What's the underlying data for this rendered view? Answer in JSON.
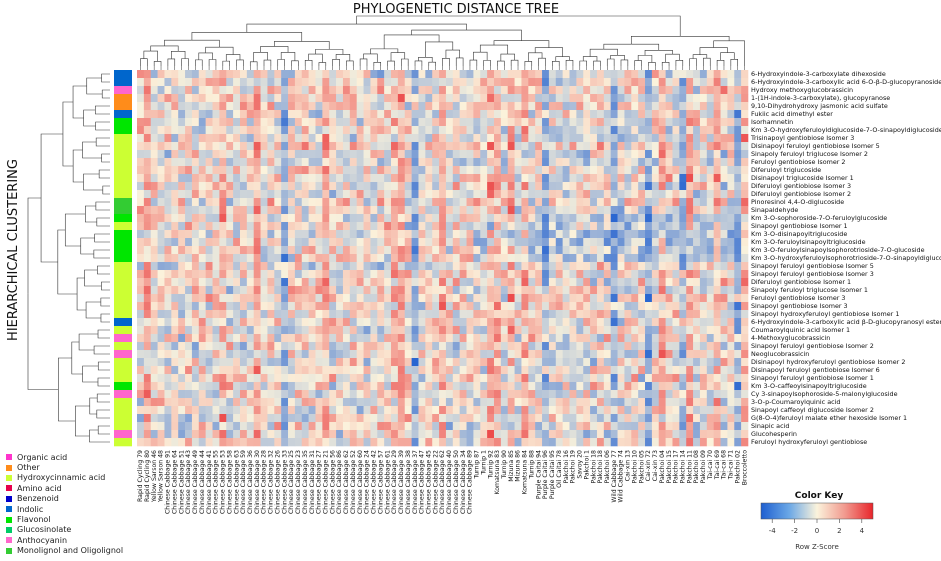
{
  "title": "PHYLOGENETIC DISTANCE TREE",
  "ylabel_side": "HIERARCHICAL CLUSTERING",
  "legend_items": [
    {
      "label": "Organic acid",
      "color": "#ff33cc"
    },
    {
      "label": "Other",
      "color": "#ff8c1a"
    },
    {
      "label": "Hydroxycinnamic acid",
      "color": "#ccff33"
    },
    {
      "label": "Amino acid",
      "color": "#e6004c"
    },
    {
      "label": "Benzenoid",
      "color": "#0000cc"
    },
    {
      "label": "Indolic",
      "color": "#0066cc"
    },
    {
      "label": "Flavonol",
      "color": "#00e600"
    },
    {
      "label": "Glucosinolate",
      "color": "#00cc66"
    },
    {
      "label": "Anthocyanin",
      "color": "#ff66cc"
    },
    {
      "label": "Monolignol and Oligolignol",
      "color": "#33cc33"
    }
  ],
  "color_key": {
    "title": "Color Key",
    "xlabel": "Row Z-Score",
    "ticks": [
      "-4",
      "-2",
      "0",
      "2",
      "4"
    ],
    "range": [
      -5,
      5
    ],
    "low_color": "#1f77d0",
    "mid_color": "#fbf3dc",
    "high_color": "#e8252b"
  },
  "chart_data": {
    "type": "heatmap",
    "title": "PHYLOGENETIC DISTANCE TREE",
    "ylabel": "HIERARCHICAL CLUSTERING",
    "legend_placement": "bottom-left",
    "rows": [
      "6-Hydroxyindole-3-carboxylate dihexoside",
      "6-Hydroxyindole-3-carboxylic acid 6-O-β-D-glucopyranoside",
      "Hydroxy methoxyglucobrassicin",
      "1-(1H-indole-3-carboxylate), glucopyranose",
      "9,10-Dihydrohydroxy jasmonic acid sulfate",
      "Fukiic acid dimethyl ester",
      "Isorhamnetin",
      "Km 3-O-hydroxyferuloyldiglucoside-7-O-sinapoyldiglucoside",
      "Trisinapoyl gentiobiose Isomer 3",
      "Disinapoyl feruloyl gentiobiose Isomer 5",
      "Sinapoly feruloyl triglucose Isomer 2",
      "Feruloyl gentiobiose Isomer 2",
      "Diferuloyl triglucoside",
      "Disinapoyl triglucoside Isomer 1",
      "Diferuloyl gentiobiose Isomer 3",
      "Diferuloyl gentiobiose Isomer 2",
      "Pinoresinol 4,4-O-diglucoside",
      "Sinapaldehyde",
      "Km 3-O-sophoroside-7-O-feruloylglucoside",
      "Sinapoyl gentiobiose Isomer 1",
      "Km 3-O-disinapoyltriglucoside",
      "Km 3-O-feruloylsinapoyltriglucoside",
      "Km 3-O-feruloylsinapoylsophorotrioside-7-O-glucoside",
      "Km 3-O-hydroxyferuloylsophorotrioside-7-O-sinapoyldiglucoside",
      "Sinapoyl feruloyl gentiobiose Isomer 5",
      "Sinapoyl feruloyl gentiobiose Isomer 3",
      "Diferuloyl gentiobiose Isomer 1",
      "Sinapoly feruloyl triglucose Isomer 1",
      "Feruloyl gentiobiose Isomer 3",
      "Sinapoyl gentiobiose Isomer 3",
      "Sinapoyl hydroxyferuloyl gentiobiose Isomer 1",
      "6-Hydroxyindole-3-carboxylic acid β-D-glucopyranosyl ester",
      "Coumaroylquinic acid Isomer 1",
      "4-Methoxyglucobrassicin",
      "Sinapoyl feruloyl gentiobiose Isomer 2",
      "Neoglucobrassicin",
      "Disinapoyl hydroxyferuloyl gentiobiose Isomer 2",
      "Disinapoyl feruloyl gentiobiose Isomer 6",
      "Sinapoyl feruloyl gentiobiose Isomer 1",
      "Km 3-O-caffeoylsinapoyltriglucoside",
      "Cy 3-sinapoylsophoroside-5-malonylglucoside",
      "3-O-p-Coumaroylquinic acid",
      "Sinapoyl caffeoyl diglucoside Isomer 2",
      "G(8-O-4)feruloyl malate ether hexoside Isomer 1",
      "Sinapic acid",
      "Glucohesperin",
      "Feruloyl hydroxyferuloyl gentiobiose"
    ],
    "row_classes": [
      "Indolic",
      "Indolic",
      "Anthocyanin",
      "Other",
      "Other",
      "Indolic",
      "Flavonol",
      "Flavonol",
      "Hydroxycinnamic acid",
      "Hydroxycinnamic acid",
      "Hydroxycinnamic acid",
      "Hydroxycinnamic acid",
      "Hydroxycinnamic acid",
      "Hydroxycinnamic acid",
      "Hydroxycinnamic acid",
      "Hydroxycinnamic acid",
      "Monolignol and Oligolignol",
      "Monolignol and Oligolignol",
      "Flavonol",
      "Hydroxycinnamic acid",
      "Flavonol",
      "Flavonol",
      "Flavonol",
      "Flavonol",
      "Hydroxycinnamic acid",
      "Hydroxycinnamic acid",
      "Hydroxycinnamic acid",
      "Hydroxycinnamic acid",
      "Hydroxycinnamic acid",
      "Hydroxycinnamic acid",
      "Hydroxycinnamic acid",
      "Indolic",
      "Hydroxycinnamic acid",
      "Anthocyanin",
      "Hydroxycinnamic acid",
      "Anthocyanin",
      "Hydroxycinnamic acid",
      "Hydroxycinnamic acid",
      "Hydroxycinnamic acid",
      "Flavonol",
      "Anthocyanin",
      "Hydroxycinnamic acid",
      "Hydroxycinnamic acid",
      "Hydroxycinnamic acid",
      "Hydroxycinnamic acid",
      "Anthocyanin",
      "Hydroxycinnamic acid"
    ],
    "columns": [
      "Rapid Cycling 79",
      "Rapid Cycling 80",
      "Yellow Sarson 46",
      "Yellow Sarson 48",
      "Chinese Cabbage 91",
      "Chinese Cabbage 64",
      "Chinese Cabbage 51",
      "Chinese Cabbage 43",
      "Chinese Cabbage 49",
      "Chinese Cabbage 44",
      "Chinese Cabbage 41",
      "Chinese Cabbage 55",
      "Chinese Cabbage 53",
      "Chinese Cabbage 58",
      "Chinese Cabbage 63",
      "Chinese Cabbage 59",
      "Chinese Cabbage 36",
      "Chinese Cabbage 30",
      "Chinese Cabbage 28",
      "Chinese Cabbage 32",
      "Chinese Cabbage 26",
      "Chinese Cabbage 33",
      "Chinese Cabbage 25",
      "Chinese Cabbage 23",
      "Chinese Cabbage 35",
      "Chinese Cabbage 31",
      "Chinese Cabbage 27",
      "Chinese Cabbage 21",
      "Chinese Cabbage 56",
      "Chinese Cabbage 86",
      "Chinese Cabbage 62",
      "Chinese Cabbage 52",
      "Chinese Cabbage 60",
      "Chinese Cabbage 24",
      "Chinese Cabbage 42",
      "Chinese Cabbage 57",
      "Chinese Cabbage 61",
      "Chinese Cabbage 29",
      "Chinese Cabbage 39",
      "Chinese Cabbage 38",
      "Chinese Cabbage 37",
      "Chinese Cabbage 47",
      "Chinese Cabbage 45",
      "Chinese Cabbage 22",
      "Chinese Cabbage 62",
      "Chinese Cabbage 40",
      "Chinese Cabbage 50",
      "Chinese Cabbage 34",
      "Chinese Cabbage 89",
      "Turnip 87",
      "Turnip 1",
      "Turnip 92",
      "Komatsuna 83",
      "Turnip 90",
      "Mizuna 85",
      "Mizuna 86",
      "Komatsuna 84",
      "Turnip 88",
      "Purple Caitai 94",
      "Purple Caitai 96",
      "Purple Caitai 95",
      "Oil Caitai 78",
      "Pakchoi 16",
      "Pakchoi 19",
      "Savoy 20",
      "Pakchoi 1",
      "Pakchoi 18",
      "Pakchoi 18",
      "Pakchoi 06",
      "Wild Cabbage 77",
      "Wild Cabbage 74",
      "Cai-xin 13",
      "Pakchoi 10",
      "Pakchoi 05",
      "Cai-xin 72",
      "Cai-xin 73",
      "Pakchoi 04",
      "Pakchoi 15",
      "Pakchoi 17",
      "Pakchoi 14",
      "Pakchoi 11",
      "Pakchoi 08",
      "Pakchoi 09",
      "Tai-cai 70",
      "Tai-cai 69",
      "Tai-cai 68",
      "Tai-cai 71",
      "Pakchoi 02",
      "Broccoletto"
    ],
    "column_note": "cell values are row Z-scores; see values[row][column]",
    "values_seed": 20240611,
    "zlim": [
      -5,
      5
    ],
    "values_encoding": "row-major compact; generated",
    "grid": false
  }
}
